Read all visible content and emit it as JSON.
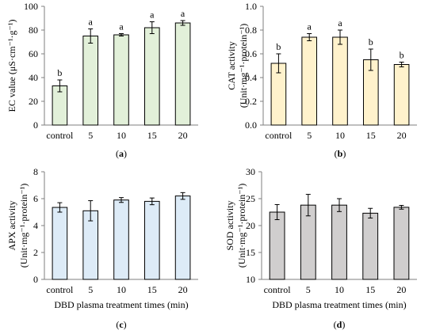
{
  "chart_data": [
    {
      "type": "bar",
      "panel_label": "(a)",
      "categories": [
        "control",
        "5",
        "10",
        "15",
        "20"
      ],
      "values": [
        33,
        75,
        76,
        82,
        86
      ],
      "errors": [
        5,
        6,
        1,
        5,
        2
      ],
      "letters": [
        "b",
        "a",
        "a",
        "a",
        "a"
      ],
      "ylabel_lines": [
        "EC value (μS·cm⁻¹·g⁻¹)"
      ],
      "xlabel": "",
      "ylim": [
        0,
        100
      ],
      "yticks": [
        "0",
        "20",
        "40",
        "60",
        "80",
        "100"
      ],
      "tick_values": [
        0,
        20,
        40,
        60,
        80,
        100
      ],
      "bar_color": "#e2f0d9",
      "grid": false
    },
    {
      "type": "bar",
      "panel_label": "(b)",
      "categories": [
        "control",
        "5",
        "10",
        "15",
        "20"
      ],
      "values": [
        0.52,
        0.74,
        0.74,
        0.55,
        0.51
      ],
      "errors": [
        0.08,
        0.03,
        0.06,
        0.09,
        0.02
      ],
      "letters": [
        "b",
        "a",
        "a",
        "b",
        "b"
      ],
      "ylabel_lines": [
        "CAT activity",
        "(Unit·mg⁻¹·protein⁻¹)"
      ],
      "xlabel": "",
      "ylim": [
        0.0,
        1.0
      ],
      "yticks": [
        "0.0",
        "0.2",
        "0.4",
        "0.6",
        "0.8",
        "1.0"
      ],
      "tick_values": [
        0,
        0.2,
        0.4,
        0.6,
        0.8,
        1.0
      ],
      "bar_color": "#fff2cc",
      "grid": false
    },
    {
      "type": "bar",
      "panel_label": "(c)",
      "categories": [
        "control",
        "5",
        "10",
        "15",
        "20"
      ],
      "values": [
        5.35,
        5.1,
        5.9,
        5.8,
        6.2
      ],
      "errors": [
        0.35,
        0.75,
        0.18,
        0.25,
        0.25
      ],
      "letters": [],
      "ylabel_lines": [
        "APX activity",
        "(Unit·mg⁻¹·protein⁻¹)"
      ],
      "xlabel": "DBD plasma treatment times (min)",
      "ylim": [
        0,
        8
      ],
      "yticks": [
        "0",
        "2",
        "4",
        "6",
        "8"
      ],
      "tick_values": [
        0,
        2,
        4,
        6,
        8
      ],
      "bar_color": "#ddebf7",
      "grid": false
    },
    {
      "type": "bar",
      "panel_label": "(d)",
      "categories": [
        "control",
        "5",
        "10",
        "15",
        "20"
      ],
      "values": [
        22.5,
        23.8,
        23.8,
        22.3,
        23.4
      ],
      "errors": [
        1.4,
        2.0,
        1.2,
        0.9,
        0.35
      ],
      "letters": [],
      "ylabel_lines": [
        "SOD activity",
        "(Unit·mg⁻¹·protein⁻¹)"
      ],
      "xlabel": "DBD plasma treatment times (min)",
      "ylim": [
        10,
        30
      ],
      "yticks": [
        "10",
        "15",
        "20",
        "25",
        "30"
      ],
      "tick_values": [
        10,
        15,
        20,
        25,
        30
      ],
      "bar_color": "#d0cece",
      "grid": false
    }
  ]
}
